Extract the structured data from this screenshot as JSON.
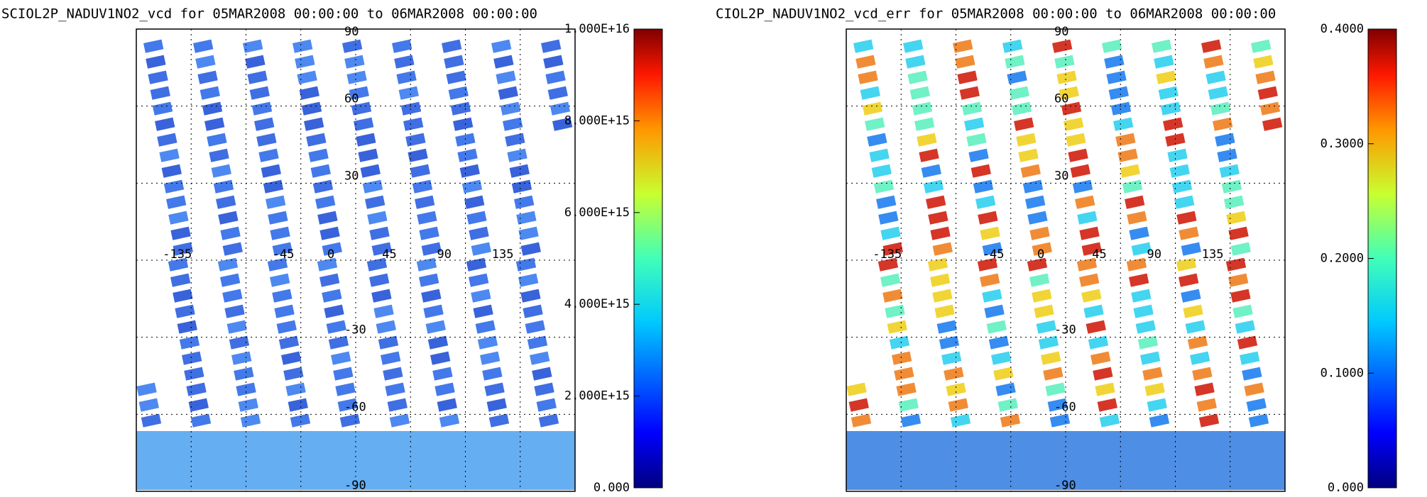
{
  "panels": [
    {
      "title": "SCIOL2P_NADUV1NO2_vcd for 05MAR2008 00:00:00 to 06MAR2008 00:00:00",
      "colorbar": {
        "range": [
          0,
          10000000000000000
        ],
        "ticks": [
          {
            "value": 0,
            "label": "0.000"
          },
          {
            "value": 2000000000000000,
            "label": "2.000E+15"
          },
          {
            "value": 4000000000000000,
            "label": "4.000E+15"
          },
          {
            "value": 6000000000000000,
            "label": "6.000E+15"
          },
          {
            "value": 8000000000000000,
            "label": "8.000E+15"
          },
          {
            "value": 10000000000000000,
            "label": "1.000E+16"
          }
        ]
      },
      "lon_labels": [
        "-135",
        "-45",
        "0",
        "45",
        "90",
        "135"
      ],
      "lat_labels": [
        "90",
        "60",
        "30",
        "-30",
        "-60",
        "-90"
      ]
    },
    {
      "title": "CIOL2P_NADUV1NO2_vcd_err for 05MAR2008 00:00:00 to 06MAR2008 00:00:00",
      "colorbar": {
        "range": [
          0,
          0.4
        ],
        "ticks": [
          {
            "value": 0,
            "label": "0.000"
          },
          {
            "value": 0.1,
            "label": "0.1000"
          },
          {
            "value": 0.2,
            "label": "0.2000"
          },
          {
            "value": 0.3,
            "label": "0.3000"
          },
          {
            "value": 0.4,
            "label": "0.4000"
          }
        ]
      },
      "lon_labels": [
        "-135",
        "-45",
        "0",
        "45",
        "90",
        "135"
      ],
      "lat_labels": [
        "90",
        "60",
        "30",
        "-30",
        "-60",
        "-90"
      ]
    }
  ]
}
